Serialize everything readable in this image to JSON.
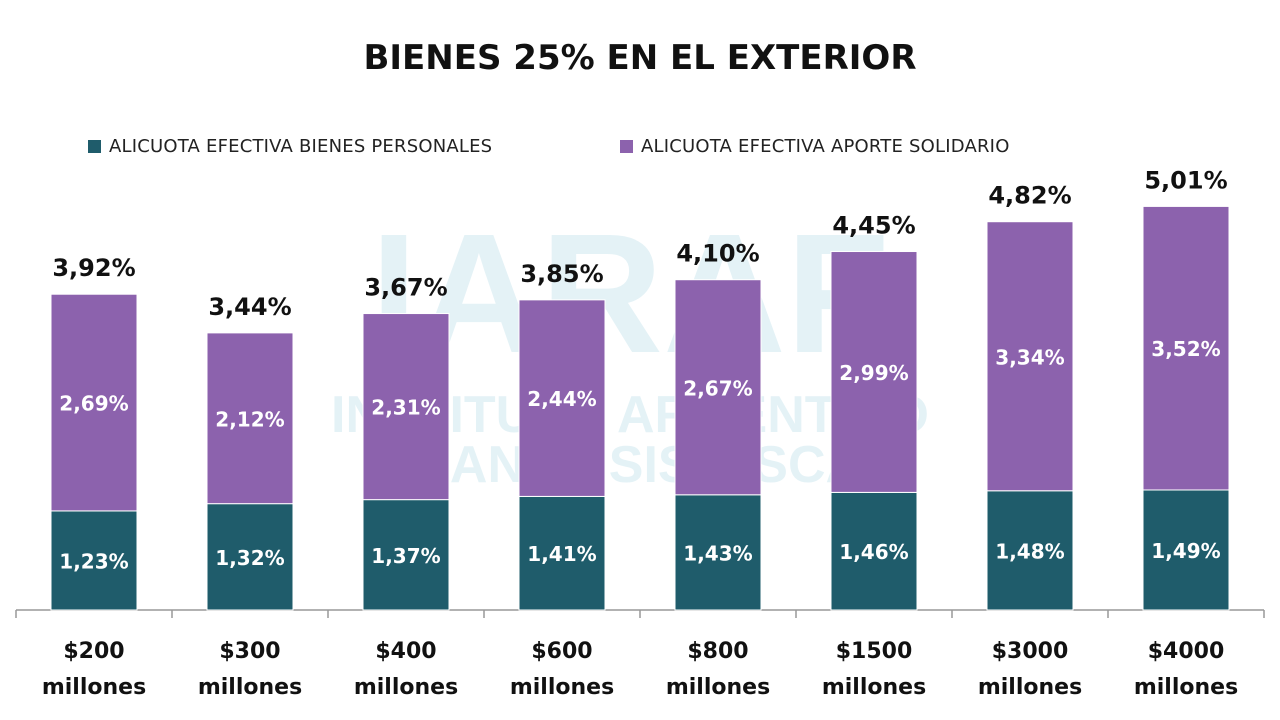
{
  "chart_data": {
    "type": "bar",
    "stacked": true,
    "title": "BIENES 25% EN EL EXTERIOR",
    "categories": [
      [
        "$200",
        "millones"
      ],
      [
        "$300",
        "millones"
      ],
      [
        "$400",
        "millones"
      ],
      [
        "$600",
        "millones"
      ],
      [
        "$800",
        "millones"
      ],
      [
        "$1500",
        "millones"
      ],
      [
        "$3000",
        "millones"
      ],
      [
        "$4000",
        "millones"
      ]
    ],
    "series": [
      {
        "name": "ALICUOTA EFECTIVA BIENES PERSONALES",
        "color": "#1f5c6b",
        "values": [
          1.23,
          1.32,
          1.37,
          1.41,
          1.43,
          1.46,
          1.48,
          1.49
        ],
        "labels": [
          "1,23%",
          "1,32%",
          "1,37%",
          "1,41%",
          "1,43%",
          "1,46%",
          "1,48%",
          "1,49%"
        ]
      },
      {
        "name": "ALICUOTA EFECTIVA APORTE SOLIDARIO",
        "color": "#8c62ad",
        "values": [
          2.69,
          2.12,
          2.31,
          2.44,
          2.67,
          2.99,
          3.34,
          3.52
        ],
        "labels": [
          "2,69%",
          "2,12%",
          "2,31%",
          "2,44%",
          "2,67%",
          "2,99%",
          "3,34%",
          "3,52%"
        ]
      }
    ],
    "totals": [
      3.92,
      3.44,
      3.67,
      3.85,
      4.1,
      4.45,
      4.82,
      5.01
    ],
    "total_labels": [
      "3,92%",
      "3,44%",
      "3,67%",
      "3,85%",
      "4,10%",
      "4,45%",
      "4,82%",
      "5,01%"
    ],
    "ylim": [
      0,
      5.4
    ],
    "grid": false,
    "legend_position": "top",
    "watermark": {
      "logo": "IARAF",
      "lines": [
        "INSTITUTO ARGENTINO",
        "DE ANALISIS FISCAL"
      ],
      "color": "#cfe8f0"
    }
  }
}
